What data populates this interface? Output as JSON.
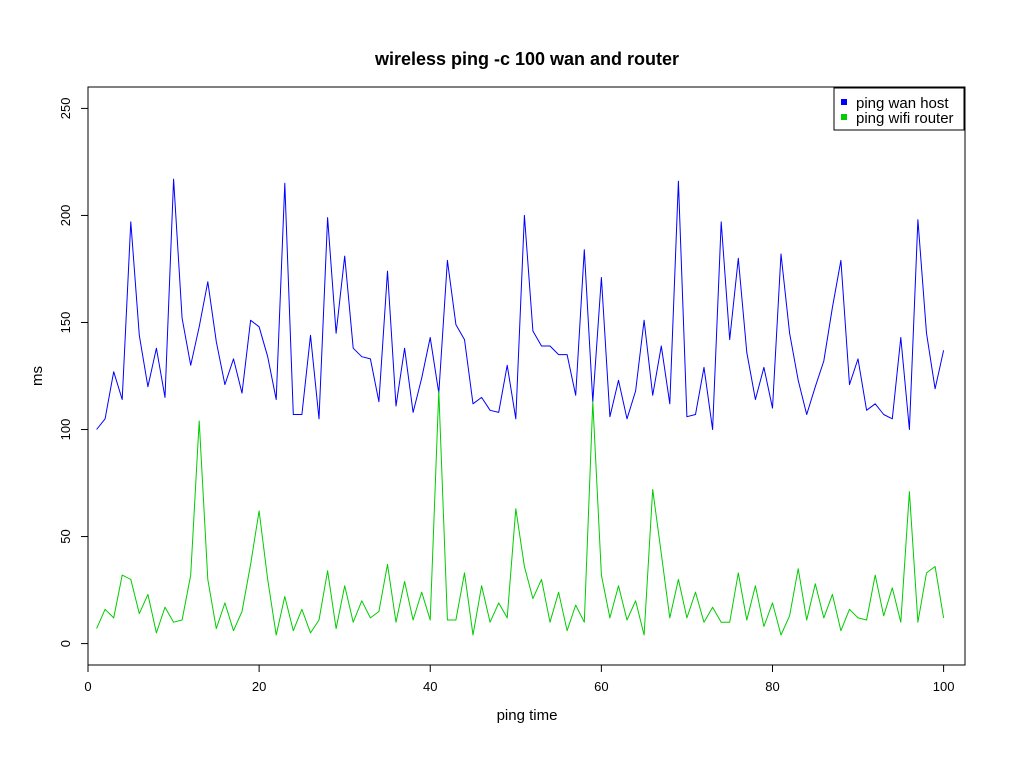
{
  "chart_data": {
    "type": "line",
    "title": "wireless ping -c 100 wan and router",
    "xlabel": "ping time",
    "ylabel": "ms",
    "xlim": [
      0,
      102.5
    ],
    "ylim": [
      -10,
      260
    ],
    "xticks": [
      0,
      20,
      40,
      60,
      80,
      100
    ],
    "yticks": [
      0,
      50,
      100,
      150,
      200,
      250
    ],
    "legend_position": "top-right",
    "x": [
      1,
      2,
      3,
      4,
      5,
      6,
      7,
      8,
      9,
      10,
      11,
      12,
      13,
      14,
      15,
      16,
      17,
      18,
      19,
      20,
      21,
      22,
      23,
      24,
      25,
      26,
      27,
      28,
      29,
      30,
      31,
      32,
      33,
      34,
      35,
      36,
      37,
      38,
      39,
      40,
      41,
      42,
      43,
      44,
      45,
      46,
      47,
      48,
      49,
      50,
      51,
      52,
      53,
      54,
      55,
      56,
      57,
      58,
      59,
      60,
      61,
      62,
      63,
      64,
      65,
      66,
      67,
      68,
      69,
      70,
      71,
      72,
      73,
      74,
      75,
      76,
      77,
      78,
      79,
      80,
      81,
      82,
      83,
      84,
      85,
      86,
      87,
      88,
      89,
      90,
      91,
      92,
      93,
      94,
      95,
      96,
      97,
      98,
      99,
      100
    ],
    "series": [
      {
        "name": "ping wan host",
        "color": "#0000ff",
        "values": [
          100,
          105,
          127,
          114,
          197,
          144,
          120,
          138,
          115,
          217,
          152,
          130,
          148,
          169,
          141,
          121,
          133,
          117,
          151,
          148,
          134,
          114,
          215,
          107,
          107,
          144,
          105,
          199,
          145,
          181,
          138,
          134,
          133,
          113,
          174,
          111,
          138,
          108,
          124,
          143,
          117,
          179,
          149,
          142,
          112,
          115,
          109,
          108,
          130,
          105,
          200,
          146,
          139,
          139,
          135,
          135,
          116,
          184,
          113,
          171,
          106,
          123,
          105,
          118,
          151,
          116,
          139,
          112,
          216,
          106,
          107,
          129,
          100,
          197,
          142,
          180,
          136,
          114,
          129,
          110,
          182,
          145,
          123,
          107,
          120,
          132,
          157,
          179,
          121,
          133,
          109,
          112,
          107,
          105,
          143,
          100,
          198,
          145,
          119,
          137
        ]
      },
      {
        "name": "ping wifi router",
        "color": "#00cd00",
        "values": [
          7,
          16,
          12,
          32,
          30,
          14,
          23,
          5,
          17,
          10,
          11,
          32,
          104,
          30,
          7,
          19,
          6,
          15,
          37,
          62,
          30,
          4,
          22,
          6,
          16,
          5,
          11,
          34,
          7,
          27,
          10,
          20,
          12,
          15,
          37,
          10,
          29,
          11,
          24,
          11,
          118,
          11,
          11,
          33,
          4,
          27,
          10,
          19,
          12,
          63,
          36,
          21,
          30,
          10,
          24,
          6,
          18,
          10,
          113,
          32,
          12,
          27,
          11,
          20,
          4,
          72,
          42,
          12,
          30,
          12,
          24,
          10,
          17,
          10,
          10,
          33,
          11,
          27,
          8,
          19,
          4,
          13,
          35,
          11,
          28,
          12,
          23,
          6,
          16,
          12,
          11,
          32,
          13,
          26,
          10,
          71,
          10,
          33,
          36,
          12
        ]
      }
    ]
  }
}
